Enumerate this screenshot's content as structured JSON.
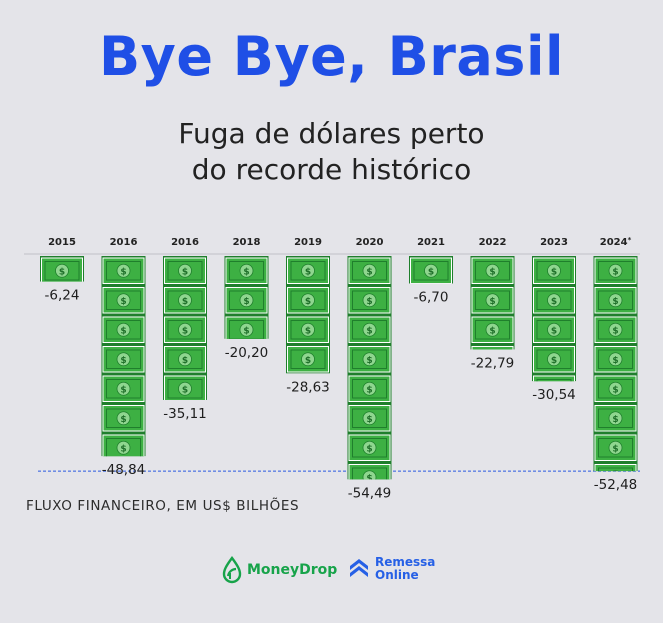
{
  "title": "Bye Bye, Brasil",
  "subtitle_line1": "Fuga de dólares perto",
  "subtitle_line2": "do recorde histórico",
  "unit_label": "FLUXO FINANCEIRO, EM US$ BILHÕES",
  "note_asterisk": "*",
  "bill_symbol": "$",
  "logos": {
    "moneydrop": "MoneyDrop",
    "remessa_line1": "Remessa",
    "remessa_line2": "Online"
  },
  "colors": {
    "background": "#e4e4e9",
    "title": "#1f4fe6",
    "bill_green": "#3db043",
    "bill_border": "#1f7f2c",
    "reference_line": "#2b59e0",
    "moneydrop_green": "#17a34a",
    "remessa_blue": "#2660e6"
  },
  "chart_data": {
    "type": "bar",
    "orientation": "downward",
    "categories": [
      "2015",
      "2016",
      "2016",
      "2018",
      "2019",
      "2020",
      "2021",
      "2022",
      "2023",
      "2024*"
    ],
    "values": [
      -6.24,
      -48.84,
      -35.11,
      -20.2,
      -28.63,
      -54.49,
      -6.7,
      -22.79,
      -30.54,
      -52.48
    ],
    "value_labels": [
      "-6,24",
      "-48,84",
      "-35,11",
      "-20,20",
      "-28,63",
      "-54,49",
      "-6,70",
      "-22,79",
      "-30,54",
      "-52,48"
    ],
    "reference_line_value": -52.48,
    "ylim": [
      -57,
      0
    ],
    "ylabel": "FLUXO FINANCEIRO, EM US$ BILHÕES",
    "xlabel": ""
  }
}
